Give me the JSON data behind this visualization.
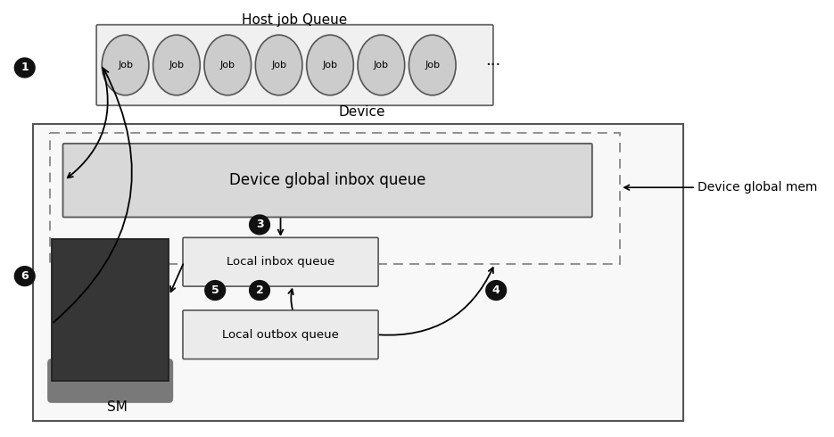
{
  "fig_width": 9.35,
  "fig_height": 4.9,
  "dpi": 100,
  "bg_color": "#ffffff",
  "host_queue_label": "Host job Queue",
  "job_labels": [
    "Job",
    "Job",
    "Job",
    "Job",
    "Job",
    "Job",
    "Job"
  ],
  "job_ellipse_color": "#cccccc",
  "job_ellipse_edge": "#555555",
  "device_label": "Device",
  "device_rect_color": "#f8f8f8",
  "device_rect_edge": "#555555",
  "giq_label": "Device global inbox queue",
  "giq_color": "#d8d8d8",
  "giq_edge": "#555555",
  "sm_color": "#363636",
  "sm_label": "SM",
  "liq_label": "Local inbox queue",
  "liq_color": "#ebebeb",
  "liq_edge": "#555555",
  "loq_label": "Local outbox queue",
  "loq_color": "#ebebeb",
  "loq_edge": "#555555",
  "device_global_mem_label": "Device global mem",
  "circle_color": "#111111",
  "circle_text_color": "#ffffff"
}
